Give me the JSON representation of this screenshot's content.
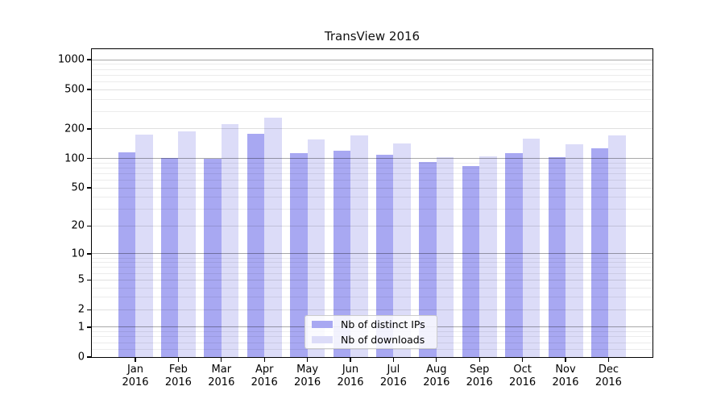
{
  "title": "TransView 2016",
  "chart_data": {
    "type": "bar",
    "title": "TransView 2016",
    "categories": [
      "Jan 2016",
      "Feb 2016",
      "Mar 2016",
      "Apr 2016",
      "May 2016",
      "Jun 2016",
      "Jul 2016",
      "Aug 2016",
      "Sep 2016",
      "Oct 2016",
      "Nov 2016",
      "Dec 2016"
    ],
    "month_labels": [
      "Jan",
      "Feb",
      "Mar",
      "Apr",
      "May",
      "Jun",
      "Jul",
      "Aug",
      "Sep",
      "Oct",
      "Nov",
      "Dec"
    ],
    "year_label": "2016",
    "series": [
      {
        "name": "Nb of distinct IPs",
        "color": "#a8a8f2",
        "values": [
          116,
          101,
          100,
          177,
          114,
          119,
          109,
          92,
          84,
          114,
          103,
          127
        ]
      },
      {
        "name": "Nb of downloads",
        "color": "#dcdcf8",
        "values": [
          176,
          189,
          225,
          261,
          155,
          173,
          143,
          104,
          105,
          160,
          140,
          173
        ]
      }
    ],
    "xlabel": "",
    "ylabel": "",
    "yscale": "symlog",
    "ylim": [
      0,
      1280
    ],
    "y_major_ticks": [
      0,
      1,
      2,
      5,
      10,
      20,
      50,
      100,
      200,
      500,
      1000
    ],
    "y_decade_ticks": [
      1,
      10,
      100,
      1000
    ],
    "y_minor_ticks": [
      0.2,
      0.4,
      0.6,
      0.8,
      3,
      4,
      6,
      7,
      8,
      9,
      30,
      40,
      60,
      70,
      80,
      90,
      300,
      400,
      600,
      700,
      800,
      900
    ],
    "grid": "horizontal-on",
    "legend_position": "lower-center",
    "frame_color": "#000000",
    "background_color": "#ffffff"
  }
}
